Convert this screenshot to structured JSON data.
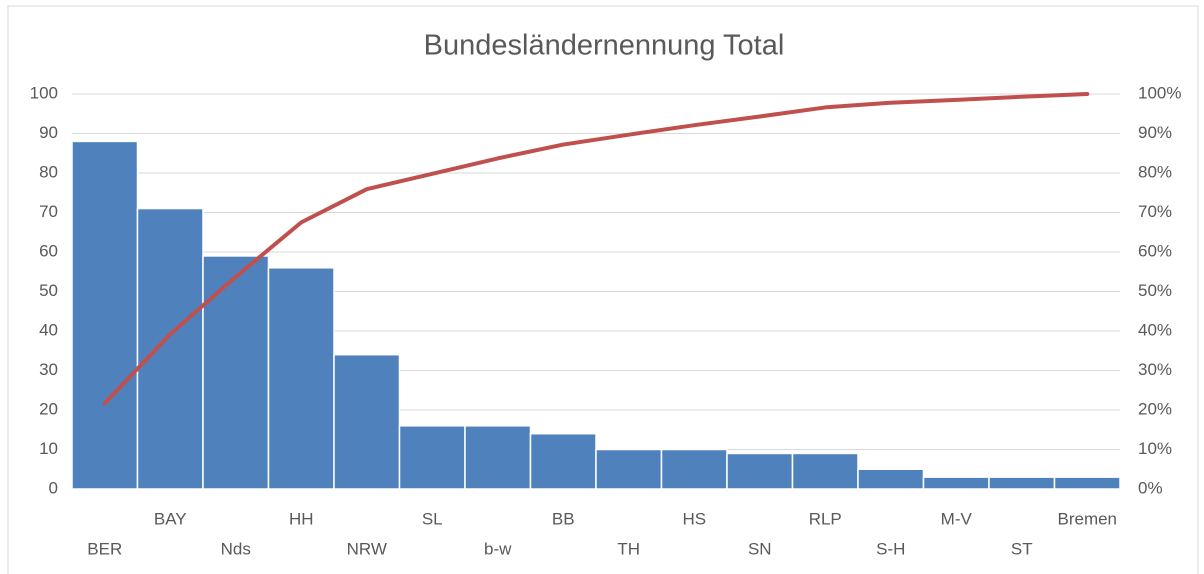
{
  "chart_data": {
    "type": "pareto",
    "title": "Bundesländernennung Total",
    "categories": [
      "BER",
      "BAY",
      "Nds",
      "HH",
      "NRW",
      "SL",
      "b-w",
      "BB",
      "TH",
      "HS",
      "SN",
      "RLP",
      "S-H",
      "M-V",
      "ST",
      "Bremen"
    ],
    "series": [
      {
        "color": "#4f81bd",
        "values": [
          88,
          71,
          59,
          56,
          34,
          16,
          16,
          14,
          10,
          10,
          9,
          9,
          5,
          3,
          3,
          3
        ]
      },
      {
        "color": "#c0504d",
        "axis": "y2",
        "values": [
          21.7,
          39.2,
          53.7,
          67.5,
          75.9,
          79.8,
          83.7,
          87.2,
          89.7,
          92.1,
          94.3,
          96.6,
          97.8,
          98.5,
          99.3,
          100
        ]
      }
    ],
    "ylim": [
      0,
      100
    ],
    "yticks": [
      0,
      10,
      20,
      30,
      40,
      50,
      60,
      70,
      80,
      90,
      100
    ],
    "y2lim": [
      0,
      100
    ],
    "y2ticks": [
      {
        "value": 0,
        "label": "0%"
      },
      {
        "value": 10,
        "label": "10%"
      },
      {
        "value": 20,
        "label": "20%"
      },
      {
        "value": 30,
        "label": "30%"
      },
      {
        "value": 40,
        "label": "40%"
      },
      {
        "value": 50,
        "label": "50%"
      },
      {
        "value": 60,
        "label": "60%"
      },
      {
        "value": 70,
        "label": "70%"
      },
      {
        "value": 80,
        "label": "80%"
      },
      {
        "value": 90,
        "label": "90%"
      },
      {
        "value": 100,
        "label": "100%"
      }
    ],
    "grid": true
  }
}
